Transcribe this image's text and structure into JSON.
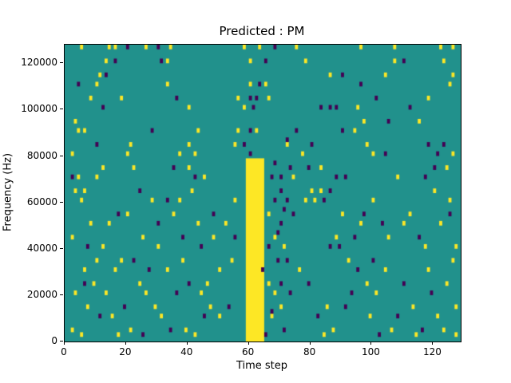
{
  "chart_data": {
    "type": "heatmap",
    "title": "Predicted : PM",
    "xlabel": "Time step",
    "ylabel": "Frequency (Hz)",
    "xlim": [
      0,
      129
    ],
    "ylim": [
      0,
      128000
    ],
    "xticks": [
      0,
      20,
      40,
      60,
      80,
      100,
      120
    ],
    "yticks": [
      0,
      20000,
      40000,
      60000,
      80000,
      100000,
      120000
    ],
    "grid": false,
    "legend": "none",
    "colors": {
      "background": "#21918c",
      "high": "#fde725",
      "low": "#440154",
      "frame": "#000000"
    },
    "cell": {
      "width_steps": 1,
      "height_hz": 2000
    },
    "band": {
      "x0": 59,
      "x1": 65,
      "y0": 0,
      "y1": 79000,
      "value": "high"
    },
    "high_cells": [
      [
        5,
        126000
      ],
      [
        14,
        126000
      ],
      [
        16,
        126000
      ],
      [
        26,
        126000
      ],
      [
        34,
        126000
      ],
      [
        58,
        126000
      ],
      [
        63,
        126000
      ],
      [
        75,
        126000
      ],
      [
        96,
        126000
      ],
      [
        107,
        126000
      ],
      [
        122,
        126000
      ],
      [
        126,
        126000
      ],
      [
        13,
        120000
      ],
      [
        33,
        120000
      ],
      [
        60,
        120000
      ],
      [
        78,
        120000
      ],
      [
        107,
        120000
      ],
      [
        123,
        120000
      ],
      [
        11,
        114000
      ],
      [
        86,
        114000
      ],
      [
        104,
        114000
      ],
      [
        126,
        114000
      ],
      [
        10,
        110000
      ],
      [
        33,
        110000
      ],
      [
        60,
        110000
      ],
      [
        65,
        110000
      ],
      [
        125,
        110000
      ],
      [
        8,
        104000
      ],
      [
        18,
        104000
      ],
      [
        56,
        104000
      ],
      [
        66,
        104000
      ],
      [
        118,
        104000
      ],
      [
        40,
        100000
      ],
      [
        58,
        100000
      ],
      [
        95,
        100000
      ],
      [
        3,
        94000
      ],
      [
        97,
        94000
      ],
      [
        115,
        94000
      ],
      [
        4,
        90000
      ],
      [
        6,
        90000
      ],
      [
        43,
        90000
      ],
      [
        56,
        90000
      ],
      [
        62,
        90000
      ],
      [
        94,
        90000
      ],
      [
        21,
        84000
      ],
      [
        40,
        84000
      ],
      [
        55,
        84000
      ],
      [
        72,
        84000
      ],
      [
        98,
        84000
      ],
      [
        2,
        80000
      ],
      [
        20,
        80000
      ],
      [
        37,
        80000
      ],
      [
        42,
        80000
      ],
      [
        77,
        80000
      ],
      [
        100,
        80000
      ],
      [
        126,
        80000
      ],
      [
        12,
        74000
      ],
      [
        22,
        74000
      ],
      [
        40,
        74000
      ],
      [
        83,
        74000
      ],
      [
        124,
        74000
      ],
      [
        4,
        70000
      ],
      [
        10,
        70000
      ],
      [
        45,
        70000
      ],
      [
        74,
        70000
      ],
      [
        108,
        70000
      ],
      [
        3,
        64000
      ],
      [
        6,
        64000
      ],
      [
        41,
        64000
      ],
      [
        80,
        64000
      ],
      [
        83,
        64000
      ],
      [
        120,
        64000
      ],
      [
        5,
        60000
      ],
      [
        28,
        60000
      ],
      [
        37,
        60000
      ],
      [
        55,
        60000
      ],
      [
        78,
        60000
      ],
      [
        81,
        60000
      ],
      [
        100,
        60000
      ],
      [
        125,
        60000
      ],
      [
        20,
        54000
      ],
      [
        35,
        54000
      ],
      [
        66,
        54000
      ],
      [
        90,
        54000
      ],
      [
        112,
        54000
      ],
      [
        8,
        50000
      ],
      [
        14,
        50000
      ],
      [
        43,
        50000
      ],
      [
        52,
        50000
      ],
      [
        96,
        50000
      ],
      [
        110,
        50000
      ],
      [
        122,
        50000
      ],
      [
        2,
        44000
      ],
      [
        25,
        44000
      ],
      [
        48,
        44000
      ],
      [
        68,
        44000
      ],
      [
        88,
        44000
      ],
      [
        105,
        44000
      ],
      [
        12,
        40000
      ],
      [
        30,
        40000
      ],
      [
        71,
        40000
      ],
      [
        117,
        40000
      ],
      [
        127,
        40000
      ],
      [
        10,
        34000
      ],
      [
        18,
        34000
      ],
      [
        38,
        34000
      ],
      [
        54,
        34000
      ],
      [
        92,
        34000
      ],
      [
        126,
        34000
      ],
      [
        6,
        30000
      ],
      [
        16,
        30000
      ],
      [
        33,
        30000
      ],
      [
        50,
        30000
      ],
      [
        76,
        30000
      ],
      [
        104,
        30000
      ],
      [
        118,
        30000
      ],
      [
        9,
        24000
      ],
      [
        24,
        24000
      ],
      [
        46,
        24000
      ],
      [
        66,
        24000
      ],
      [
        98,
        24000
      ],
      [
        124,
        24000
      ],
      [
        3,
        20000
      ],
      [
        13,
        20000
      ],
      [
        26,
        20000
      ],
      [
        44,
        20000
      ],
      [
        68,
        20000
      ],
      [
        101,
        20000
      ],
      [
        7,
        14000
      ],
      [
        29,
        14000
      ],
      [
        47,
        14000
      ],
      [
        70,
        14000
      ],
      [
        85,
        14000
      ],
      [
        113,
        14000
      ],
      [
        127,
        14000
      ],
      [
        15,
        10000
      ],
      [
        31,
        10000
      ],
      [
        50,
        10000
      ],
      [
        67,
        10000
      ],
      [
        99,
        10000
      ],
      [
        121,
        10000
      ],
      [
        2,
        4000
      ],
      [
        21,
        4000
      ],
      [
        39,
        4000
      ],
      [
        87,
        4000
      ],
      [
        106,
        4000
      ],
      [
        123,
        4000
      ],
      [
        5,
        2000
      ],
      [
        17,
        2000
      ],
      [
        42,
        2000
      ],
      [
        84,
        2000
      ],
      [
        114,
        2000
      ],
      [
        127,
        2000
      ]
    ],
    "low_cells": [
      [
        20,
        126000
      ],
      [
        30,
        126000
      ],
      [
        68,
        126000
      ],
      [
        16,
        120000
      ],
      [
        31,
        120000
      ],
      [
        65,
        120000
      ],
      [
        110,
        120000
      ],
      [
        13,
        114000
      ],
      [
        90,
        114000
      ],
      [
        4,
        110000
      ],
      [
        63,
        110000
      ],
      [
        96,
        110000
      ],
      [
        36,
        104000
      ],
      [
        60,
        104000
      ],
      [
        62,
        104000
      ],
      [
        101,
        104000
      ],
      [
        12,
        100000
      ],
      [
        61,
        100000
      ],
      [
        83,
        100000
      ],
      [
        86,
        100000
      ],
      [
        88,
        100000
      ],
      [
        112,
        100000
      ],
      [
        105,
        94000
      ],
      [
        28,
        90000
      ],
      [
        60,
        90000
      ],
      [
        75,
        90000
      ],
      [
        90,
        90000
      ],
      [
        10,
        84000
      ],
      [
        58,
        84000
      ],
      [
        80,
        84000
      ],
      [
        118,
        84000
      ],
      [
        123,
        84000
      ],
      [
        60,
        80000
      ],
      [
        104,
        80000
      ],
      [
        121,
        80000
      ],
      [
        35,
        74000
      ],
      [
        73,
        74000
      ],
      [
        79,
        74000
      ],
      [
        120,
        74000
      ],
      [
        2,
        70000
      ],
      [
        42,
        70000
      ],
      [
        67,
        70000
      ],
      [
        70,
        70000
      ],
      [
        88,
        70000
      ],
      [
        91,
        70000
      ],
      [
        117,
        70000
      ],
      [
        24,
        64000
      ],
      [
        70,
        64000
      ],
      [
        86,
        64000
      ],
      [
        33,
        60000
      ],
      [
        68,
        60000
      ],
      [
        72,
        60000
      ],
      [
        84,
        60000
      ],
      [
        17,
        54000
      ],
      [
        48,
        54000
      ],
      [
        74,
        54000
      ],
      [
        97,
        54000
      ],
      [
        125,
        54000
      ],
      [
        30,
        50000
      ],
      [
        70,
        50000
      ],
      [
        103,
        50000
      ],
      [
        38,
        44000
      ],
      [
        55,
        44000
      ],
      [
        94,
        44000
      ],
      [
        115,
        44000
      ],
      [
        7,
        40000
      ],
      [
        44,
        40000
      ],
      [
        66,
        40000
      ],
      [
        86,
        40000
      ],
      [
        89,
        40000
      ],
      [
        22,
        34000
      ],
      [
        69,
        34000
      ],
      [
        72,
        34000
      ],
      [
        100,
        34000
      ],
      [
        27,
        30000
      ],
      [
        64,
        30000
      ],
      [
        95,
        30000
      ],
      [
        6,
        24000
      ],
      [
        40,
        24000
      ],
      [
        79,
        24000
      ],
      [
        110,
        24000
      ],
      [
        36,
        20000
      ],
      [
        73,
        20000
      ],
      [
        93,
        20000
      ],
      [
        119,
        20000
      ],
      [
        19,
        14000
      ],
      [
        53,
        14000
      ],
      [
        91,
        14000
      ],
      [
        11,
        10000
      ],
      [
        45,
        10000
      ],
      [
        82,
        10000
      ],
      [
        108,
        10000
      ],
      [
        34,
        4000
      ],
      [
        71,
        4000
      ],
      [
        116,
        4000
      ],
      [
        25,
        2000
      ],
      [
        65,
        2000
      ],
      [
        102,
        2000
      ],
      [
        69,
        46000
      ],
      [
        71,
        56000
      ],
      [
        68,
        76000
      ],
      [
        72,
        86000
      ],
      [
        70,
        24000
      ],
      [
        67,
        12000
      ]
    ]
  }
}
